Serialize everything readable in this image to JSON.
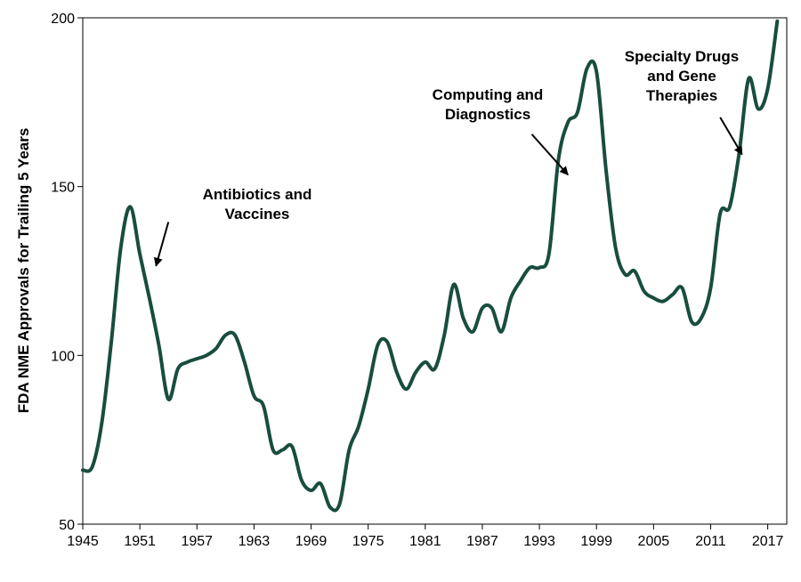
{
  "chart_data": {
    "type": "line",
    "title": "",
    "xlabel": "",
    "ylabel": "FDA NME Approvals for Trailing 5 Years",
    "xlim": [
      1945,
      2019
    ],
    "ylim": [
      50,
      200
    ],
    "x_ticks": [
      1945,
      1951,
      1957,
      1963,
      1969,
      1975,
      1981,
      1987,
      1993,
      1999,
      2005,
      2011,
      2017
    ],
    "y_ticks": [
      50,
      100,
      150,
      200
    ],
    "grid": false,
    "legend": "none",
    "line_color": "#184d3f",
    "series": [
      {
        "x": [
          1945,
          1946,
          1947,
          1948,
          1949,
          1950,
          1951,
          1952,
          1953,
          1954,
          1955,
          1956,
          1957,
          1958,
          1959,
          1960,
          1961,
          1962,
          1963,
          1964,
          1965,
          1966,
          1967,
          1968,
          1969,
          1970,
          1971,
          1972,
          1973,
          1974,
          1975,
          1976,
          1977,
          1978,
          1979,
          1980,
          1981,
          1982,
          1983,
          1984,
          1985,
          1986,
          1987,
          1988,
          1989,
          1990,
          1991,
          1992,
          1993,
          1994,
          1995,
          1996,
          1997,
          1998,
          1999,
          2000,
          2001,
          2002,
          2003,
          2004,
          2005,
          2006,
          2007,
          2008,
          2009,
          2010,
          2011,
          2012,
          2013,
          2014,
          2015,
          2016,
          2017,
          2018
        ],
        "values": [
          66,
          67,
          80,
          104,
          132,
          144,
          130,
          117,
          103,
          87,
          96,
          98,
          99,
          100,
          102,
          106,
          106,
          98,
          88,
          85,
          72,
          72,
          73,
          63,
          60,
          62,
          55,
          56,
          72,
          79,
          90,
          103,
          104,
          95,
          90,
          95,
          98,
          96,
          106,
          121,
          111,
          107,
          114,
          114,
          107,
          117,
          122,
          126,
          126,
          130,
          158,
          169,
          172,
          185,
          184,
          155,
          132,
          124,
          125,
          119,
          117,
          116,
          118,
          120,
          110,
          111,
          120,
          142,
          144,
          160,
          182,
          173,
          179,
          199
        ]
      }
    ],
    "annotations": [
      {
        "lines": [
          "Antibiotics and",
          "Vaccines"
        ],
        "arrow_from": [
          1954.0,
          139.5
        ],
        "arrow_to": [
          1952.7,
          126.5
        ]
      },
      {
        "lines": [
          "Computing and",
          "Diagnostics"
        ],
        "arrow_from": [
          1992.2,
          165.5
        ],
        "arrow_to": [
          1996.0,
          153.5
        ]
      },
      {
        "lines": [
          "Specialty Drugs",
          "and Gene",
          "Therapies"
        ],
        "arrow_from": [
          2012.0,
          170.5
        ],
        "arrow_to": [
          2014.3,
          159.5
        ]
      }
    ]
  }
}
